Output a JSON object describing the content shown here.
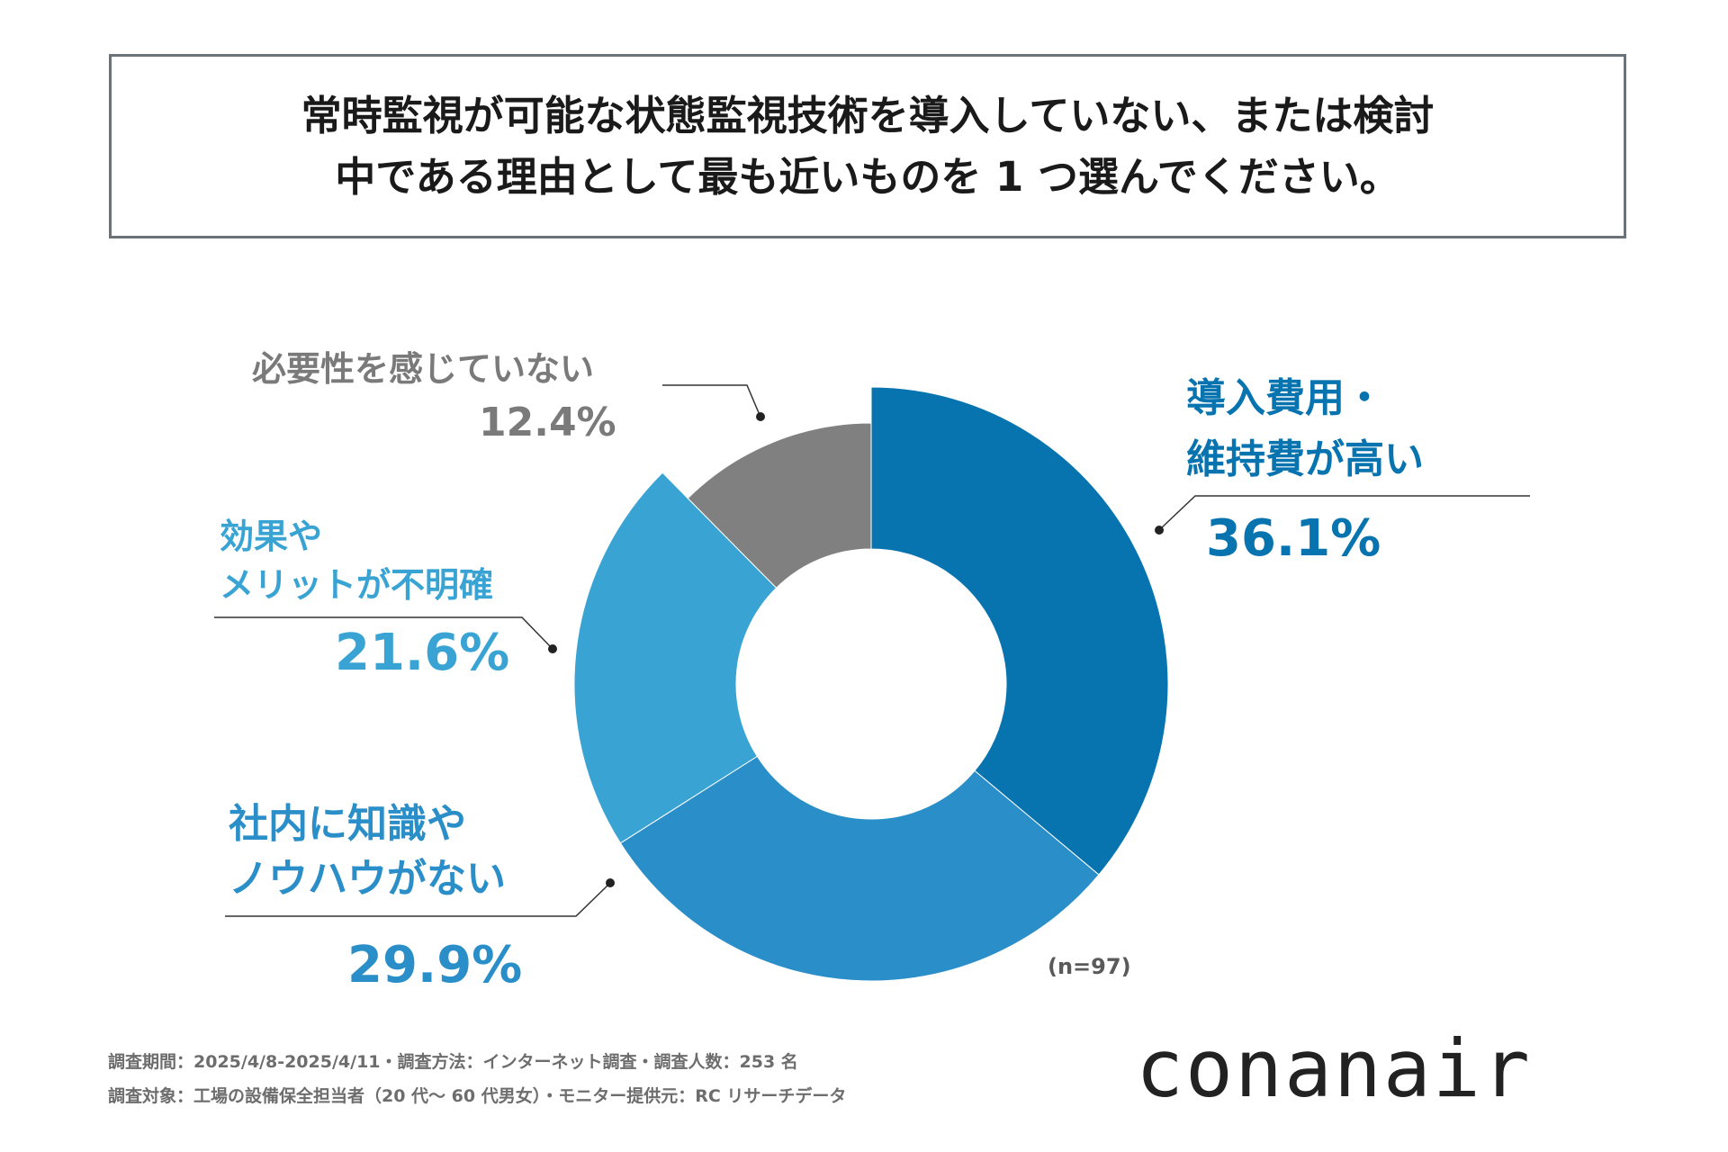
{
  "title": {
    "line1": "常時監視が可能な状態監視技術を導入していない、または検討",
    "line2": "中である理由として最も近いものを 1 つ選んでください。"
  },
  "chart_data": {
    "type": "pie",
    "subtype": "donut",
    "title": "常時監視が可能な状態監視技術を導入していない、または検討中である理由として最も近いものを 1 つ選んでください。",
    "sample_size_label": "(n=97)",
    "categories": [
      "導入費用・維持費が高い",
      "社内に知識やノウハウがない",
      "効果やメリットが不明確",
      "必要性を感じていない"
    ],
    "values": [
      36.1,
      29.9,
      21.6,
      12.4
    ],
    "value_labels": [
      "36.1%",
      "29.9%",
      "21.6%",
      "12.4%"
    ],
    "label_lines": [
      [
        "導入費用・",
        "維持費が高い"
      ],
      [
        "社内に知識や",
        "ノウハウがない"
      ],
      [
        "効果や",
        "メリットが不明確"
      ],
      [
        "必要性を感じていない"
      ]
    ],
    "colors": [
      "#0774b0",
      "#2a8ec8",
      "#39a4d3",
      "#808080"
    ],
    "start": "12 o'clock",
    "direction": "clockwise"
  },
  "footer": {
    "line1": "調査期間：2025/4/8-2025/4/11・調査方法：インターネット調査・調査人数：253 名",
    "line2": "調査対象：工場の設備保全担当者（20 代～ 60 代男女）・モニター提供元：RC リサーチデータ"
  },
  "logo": {
    "text": "conanair"
  }
}
